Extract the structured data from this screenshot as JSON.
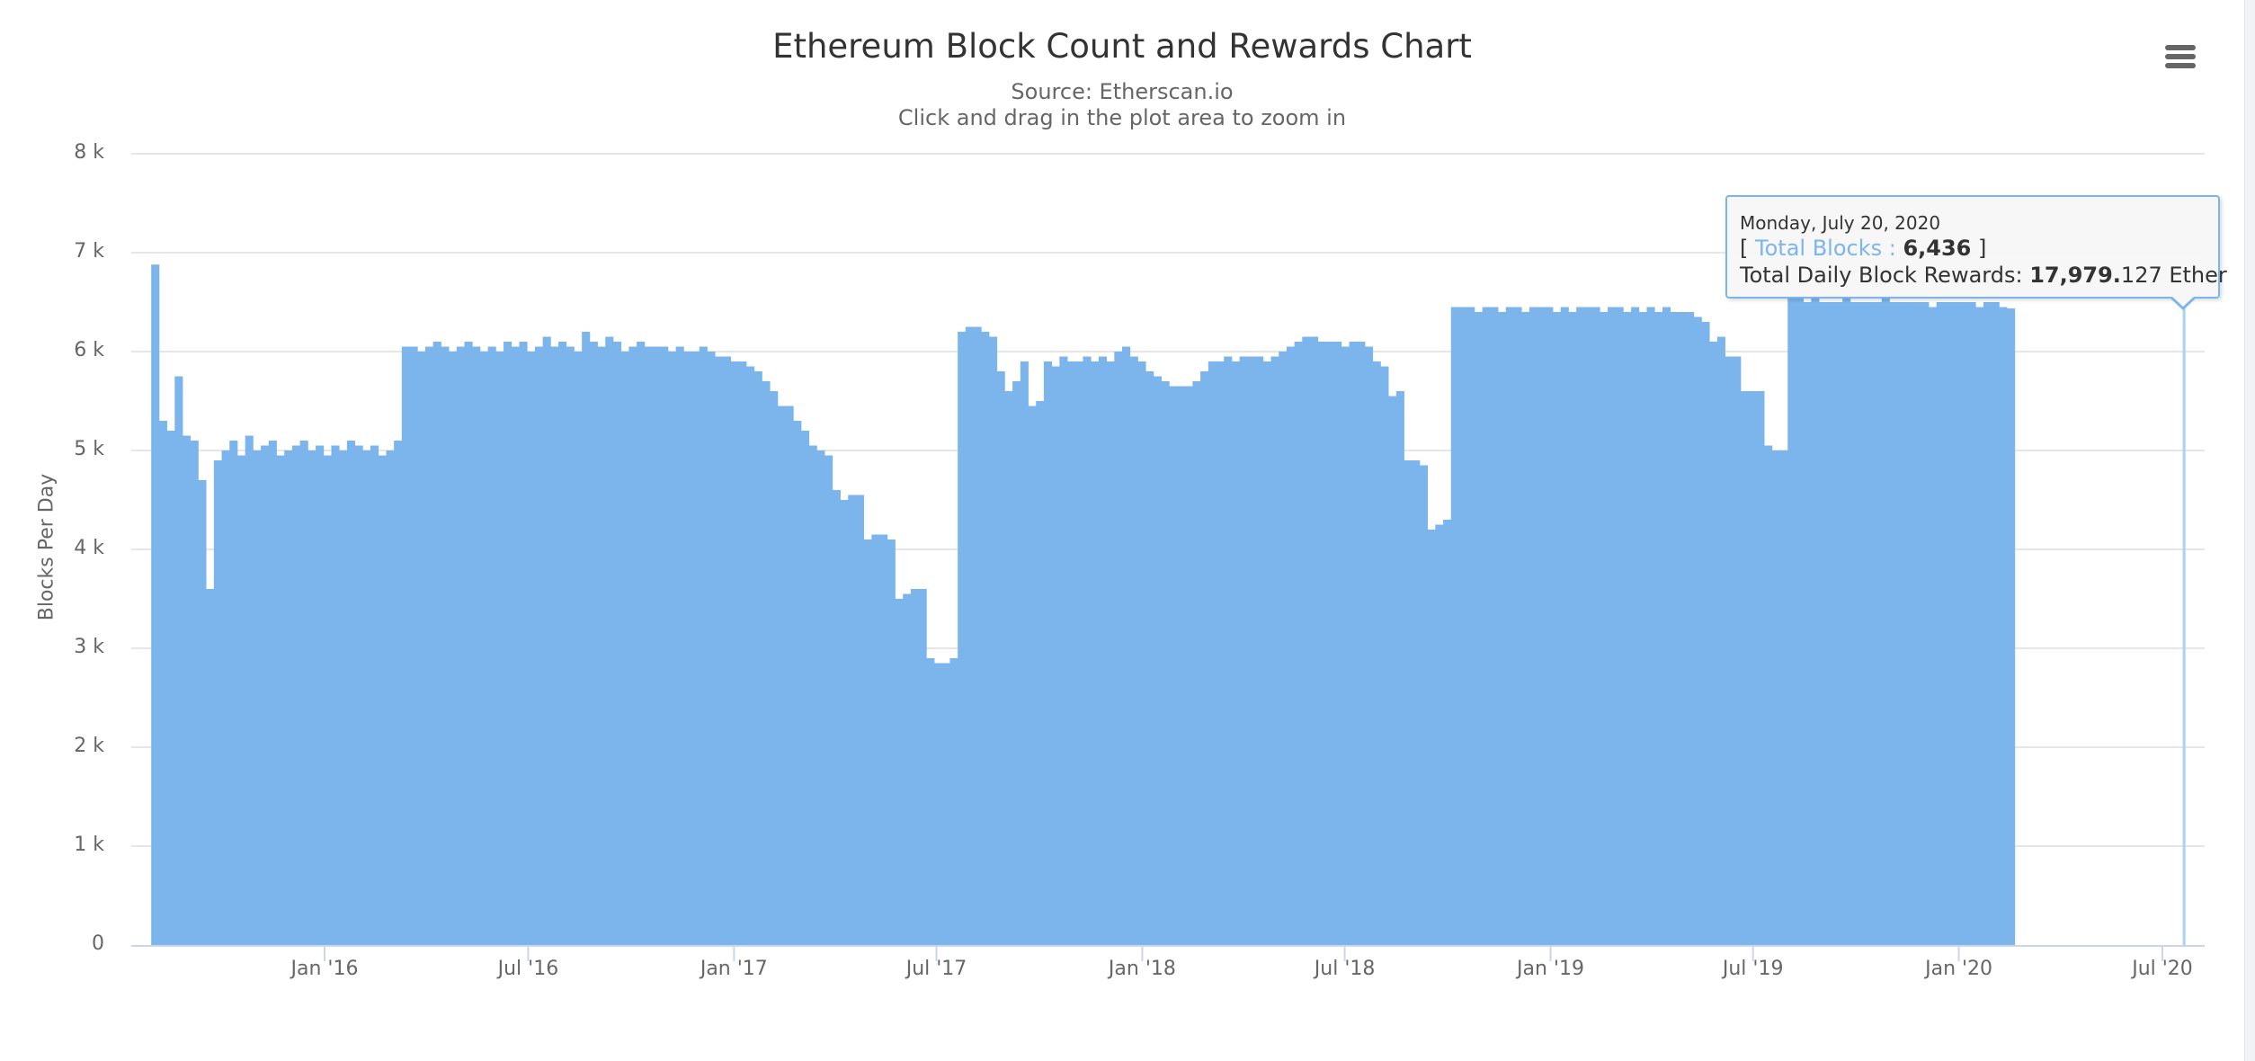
{
  "chart_data": {
    "type": "bar",
    "title": "Ethereum Block Count and Rewards Chart",
    "subtitle": "Source: Etherscan.io",
    "hint": "Click and drag in the plot area to zoom in",
    "xlabel": "",
    "ylabel": "Blocks Per Day",
    "ylim": [
      0,
      8000
    ],
    "yticks": [
      0,
      1000,
      2000,
      3000,
      4000,
      5000,
      6000,
      7000,
      8000
    ],
    "ytick_labels": [
      "0",
      "1 k",
      "2 k",
      "3 k",
      "4 k",
      "5 k",
      "6 k",
      "7 k",
      "8 k"
    ],
    "xlim": [
      "2015-07-30",
      "2020-07-20"
    ],
    "xticks": [
      "2016-01-01",
      "2016-07-01",
      "2017-01-01",
      "2017-07-01",
      "2018-01-01",
      "2018-07-01",
      "2019-01-01",
      "2019-07-01",
      "2020-01-01",
      "2020-07-01"
    ],
    "xtick_labels": [
      "Jan '16",
      "Jul '16",
      "Jan '17",
      "Jul '17",
      "Jan '18",
      "Jul '18",
      "Jan '19",
      "Jul '19",
      "Jan '20",
      "Jul '20"
    ],
    "grid": true,
    "legend": "none",
    "color": "#7cb5ec",
    "series": [
      {
        "name": "Total Blocks",
        "start_date": "2015-07-30",
        "interval_days": 7,
        "values": [
          6880,
          5300,
          5200,
          5750,
          5150,
          5100,
          4700,
          3600,
          4900,
          5000,
          5100,
          4950,
          5150,
          5000,
          5050,
          5100,
          4950,
          5000,
          5050,
          5100,
          5000,
          5050,
          4950,
          5050,
          5000,
          5100,
          5050,
          5000,
          5050,
          4950,
          5000,
          5100,
          6050,
          6050,
          6000,
          6050,
          6100,
          6050,
          6000,
          6050,
          6100,
          6050,
          6000,
          6050,
          6000,
          6100,
          6050,
          6100,
          6000,
          6050,
          6150,
          6050,
          6100,
          6050,
          6000,
          6200,
          6100,
          6050,
          6150,
          6100,
          6000,
          6050,
          6100,
          6050,
          6050,
          6050,
          6000,
          6050,
          6000,
          6000,
          6050,
          6000,
          5950,
          5950,
          5900,
          5900,
          5850,
          5800,
          5700,
          5600,
          5450,
          5450,
          5300,
          5200,
          5050,
          5000,
          4950,
          4600,
          4500,
          4550,
          4550,
          4100,
          4150,
          4150,
          4100,
          3500,
          3550,
          3600,
          3600,
          2900,
          2850,
          2850,
          2900,
          6200,
          6250,
          6250,
          6200,
          6150,
          5800,
          5600,
          5700,
          5900,
          5450,
          5500,
          5900,
          5850,
          5950,
          5900,
          5900,
          5950,
          5900,
          5950,
          5900,
          6000,
          6050,
          5950,
          5900,
          5800,
          5750,
          5700,
          5650,
          5650,
          5650,
          5700,
          5800,
          5900,
          5900,
          5950,
          5900,
          5950,
          5950,
          5950,
          5900,
          5950,
          6000,
          6050,
          6100,
          6150,
          6150,
          6100,
          6100,
          6100,
          6050,
          6100,
          6100,
          6050,
          5900,
          5850,
          5550,
          5600,
          4900,
          4900,
          4850,
          4200,
          4250,
          4300,
          6450,
          6450,
          6450,
          6400,
          6450,
          6450,
          6400,
          6450,
          6450,
          6400,
          6450,
          6450,
          6450,
          6400,
          6450,
          6400,
          6450,
          6450,
          6450,
          6400,
          6450,
          6450,
          6400,
          6450,
          6400,
          6450,
          6400,
          6450,
          6400,
          6400,
          6400,
          6350,
          6300,
          6100,
          6150,
          5950,
          5950,
          5600,
          5600,
          5600,
          5050,
          5000,
          5000,
          6550,
          6550,
          6500,
          6550,
          6500,
          6500,
          6500,
          6550,
          6500,
          6500,
          6500,
          6500,
          6550,
          6500,
          6500,
          6500,
          6500,
          6500,
          6450,
          6500,
          6500,
          6500,
          6500,
          6500,
          6450,
          6500,
          6500,
          6450,
          6436
        ]
      }
    ],
    "tooltip": {
      "date": "Monday, July 20, 2020",
      "open_bracket": "[",
      "series_label": "Total Blocks :",
      "value": "6,436",
      "close_bracket": "]",
      "rewards_label": "Total Daily Block Rewards:",
      "rewards_value_bold": "17,979.",
      "rewards_value_rest": "127 Ether"
    }
  },
  "menu": {
    "icon": "hamburger-menu-icon"
  }
}
